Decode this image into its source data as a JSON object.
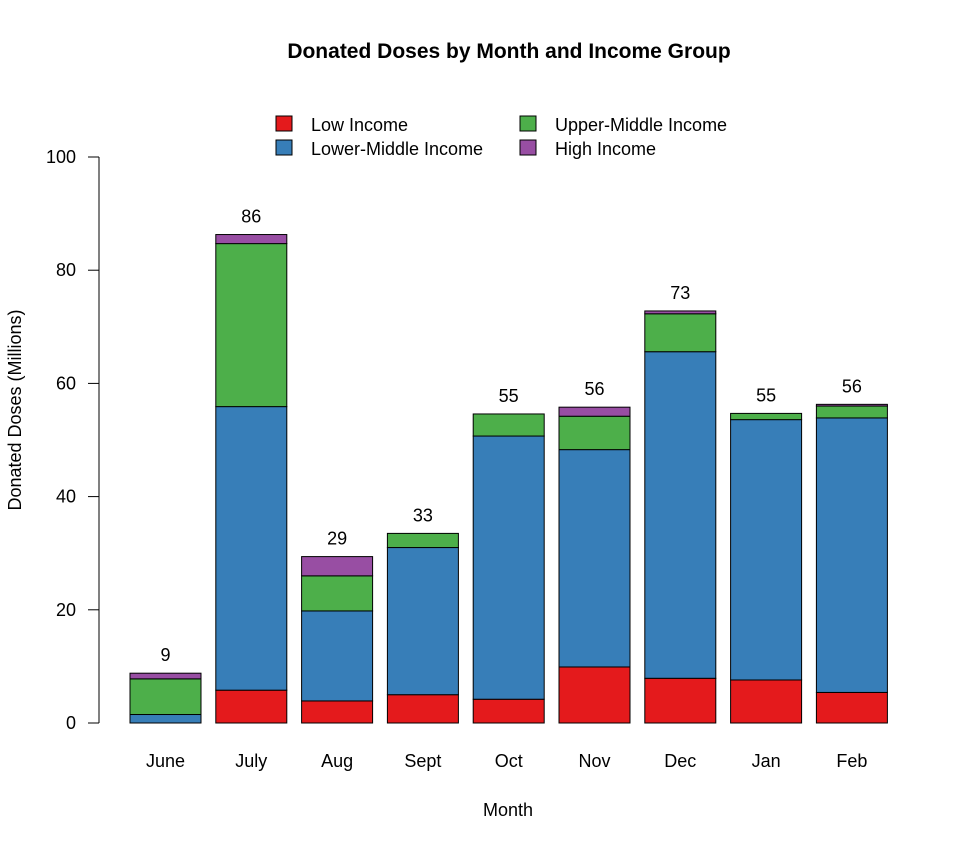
{
  "chart_data": {
    "type": "bar",
    "stacked": true,
    "title": "Donated Doses by Month and Income Group",
    "xlabel": "Month",
    "ylabel": "Donated Doses (Millions)",
    "ylim": [
      0,
      100
    ],
    "yticks": [
      0,
      20,
      40,
      60,
      80,
      100
    ],
    "grid": false,
    "legend_position": "top",
    "categories": [
      "June",
      "July",
      "Aug",
      "Sept",
      "Oct",
      "Nov",
      "Dec",
      "Jan",
      "Feb"
    ],
    "series": [
      {
        "name": "Low Income",
        "color": "#E41A1C",
        "values": [
          0,
          5.8,
          3.9,
          5.0,
          4.2,
          9.9,
          7.9,
          7.6,
          5.4
        ]
      },
      {
        "name": "Lower-Middle Income",
        "color": "#377EB8",
        "values": [
          1.5,
          50.1,
          15.9,
          26.0,
          46.5,
          38.4,
          57.7,
          46.0,
          48.5
        ]
      },
      {
        "name": "Upper-Middle Income",
        "color": "#4DAF4A",
        "values": [
          6.3,
          28.8,
          6.2,
          2.5,
          3.9,
          5.9,
          6.7,
          1.1,
          2.1
        ]
      },
      {
        "name": "High Income",
        "color": "#984EA3",
        "values": [
          1.0,
          1.6,
          3.4,
          0,
          0,
          1.6,
          0.5,
          0,
          0.3
        ]
      }
    ],
    "totals": [
      "9",
      "86",
      "29",
      "33",
      "55",
      "56",
      "73",
      "55",
      "56"
    ]
  }
}
